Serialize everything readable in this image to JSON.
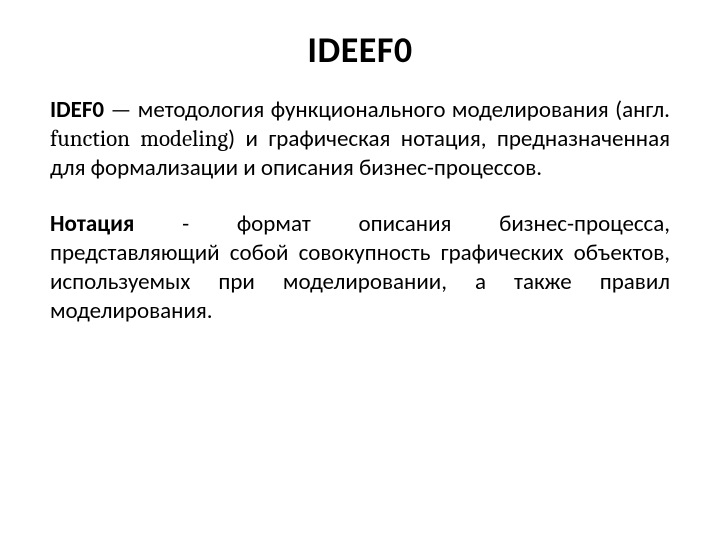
{
  "title": "IDEEF0",
  "paragraph1": {
    "bold": "IDEF0",
    "text1": " — методология функционального моделирования (англ. ",
    "english": "function modeling",
    "text2": ") и графическая нотация, предназначенная для формализации и описания бизнес-процессов."
  },
  "paragraph2": {
    "bold": "Нотация",
    "text": " - формат описания бизнес-процесса, представляющий собой совокупность графических объектов, используемых при моделировании, а также правил моделирования."
  },
  "styles": {
    "background_color": "#ffffff",
    "text_color": "#000000",
    "title_fontsize": 36,
    "body_fontsize": 23,
    "font_family": "Calibri"
  }
}
